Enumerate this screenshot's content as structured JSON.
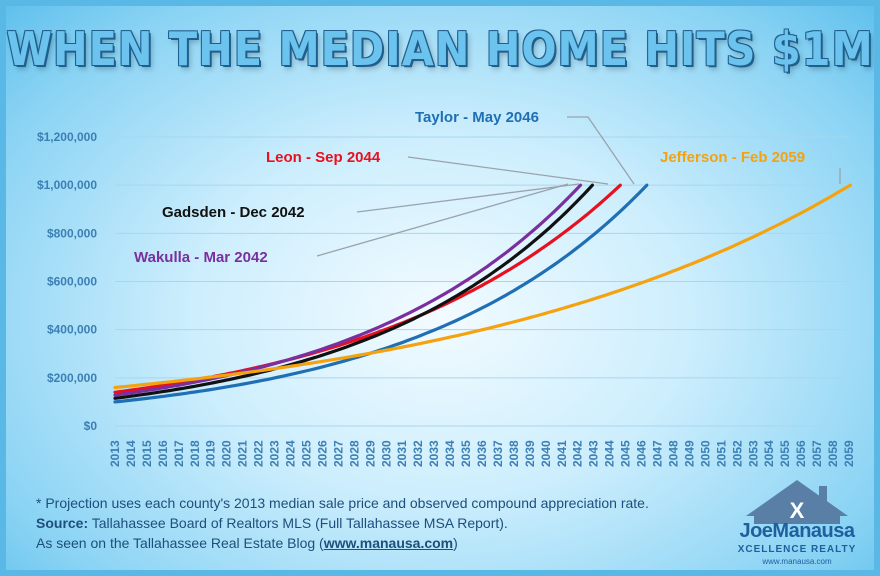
{
  "chart_data": {
    "type": "line",
    "title": "WHEN THE MEDIAN HOME HITS $1M",
    "xlabel": "",
    "ylabel": "",
    "xlim": [
      2013,
      2059
    ],
    "ylim": [
      0,
      1200000
    ],
    "y_ticks": [
      0,
      200000,
      400000,
      600000,
      800000,
      1000000,
      1200000
    ],
    "y_tick_labels": [
      "$0",
      "$200,000",
      "$400,000",
      "$600,000",
      "$800,000",
      "$1,000,000",
      "$1,200,000"
    ],
    "x_ticks": [
      2013,
      2014,
      2015,
      2016,
      2017,
      2018,
      2019,
      2020,
      2021,
      2022,
      2023,
      2024,
      2025,
      2026,
      2027,
      2028,
      2029,
      2030,
      2031,
      2032,
      2033,
      2034,
      2035,
      2036,
      2037,
      2038,
      2039,
      2040,
      2041,
      2042,
      2043,
      2044,
      2045,
      2046,
      2047,
      2048,
      2049,
      2050,
      2051,
      2052,
      2053,
      2054,
      2055,
      2056,
      2057,
      2058,
      2059
    ],
    "grid": true,
    "legend": "none",
    "series": [
      {
        "label": "Taylor - May 2046",
        "color": "#1f6fb5",
        "start_value": 100000,
        "end_year": 2046.33,
        "end_value": 1000000
      },
      {
        "label": "Leon - Sep 2044",
        "color": "#e8101f",
        "start_value": 140000,
        "end_year": 2044.67,
        "end_value": 1000000
      },
      {
        "label": "Gadsden - Dec 2042",
        "color": "#111111",
        "start_value": 115000,
        "end_year": 2042.92,
        "end_value": 1000000
      },
      {
        "label": "Wakulla - Mar 2042",
        "color": "#7b2f9e",
        "start_value": 128000,
        "end_year": 2042.17,
        "end_value": 1000000
      },
      {
        "label": "Jefferson - Feb 2059",
        "color": "#f5a20f",
        "start_value": 160000,
        "end_year": 2059.08,
        "end_value": 1000000
      }
    ]
  },
  "footnotes": {
    "note": "* Projection uses each county's 2013 median sale price and observed compound appreciation rate.",
    "source_label": "Source:",
    "source_text": " Tallahassee Board of Realtors MLS (Full Tallahassee MSA Report).",
    "seen_prefix": "As seen on the Tallahassee Real Estate Blog (",
    "seen_link": "www.manausa.com",
    "seen_suffix": ")"
  },
  "logo": {
    "name": "JoeManausa",
    "subtitle": "XCELLENCE REALTY",
    "url": "www.manausa.com",
    "colors": {
      "house": "#5a7fa6",
      "text": "#1f5f9e"
    }
  }
}
